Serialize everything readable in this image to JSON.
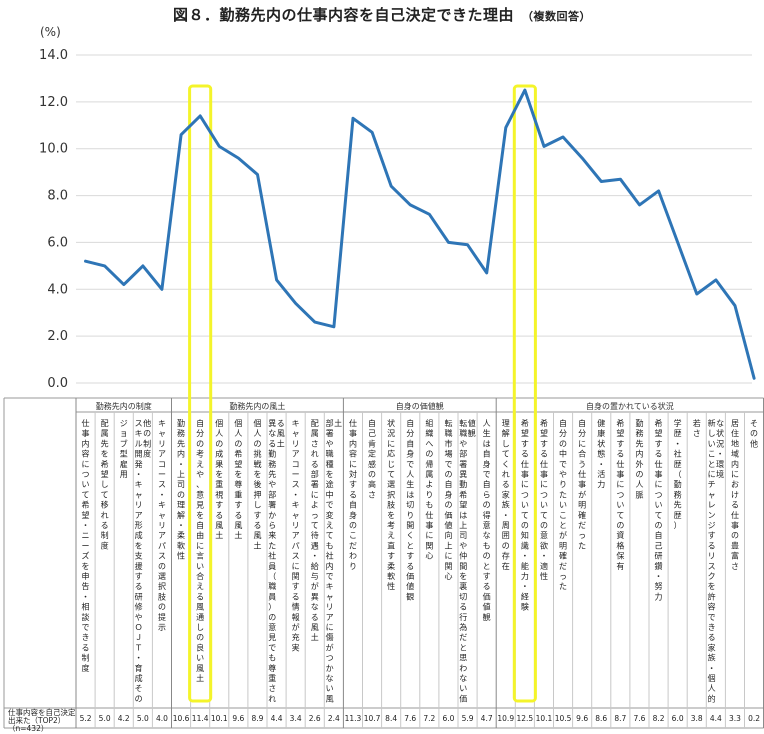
{
  "header": {
    "title": "図８．勤務先内の仕事内容を自己決定できた理由",
    "subtitle": "（複数回答）"
  },
  "chart_data": {
    "type": "line",
    "unit_label": "(%)",
    "ylim": [
      0,
      14
    ],
    "yticks": [
      "0.0",
      "2.0",
      "4.0",
      "6.0",
      "8.0",
      "10.0",
      "12.0",
      "14.0"
    ],
    "line_color": "#2e75b6",
    "highlight_color": "#f4f42a",
    "categories": [
      "仕事内容について希望・ニーズを申告・相談できる制度",
      "配属先を希望して移れる制度",
      "ジョブ型雇用",
      "スキル開発・キャリア形成を支援する研修やＯＪＴ・育成その他の制度",
      "キャリアコース・キャリアパスの選択肢の提示",
      "勤務先内・上司の理解・柔軟性",
      "自分の考えや、意見を自由に言い合える風通しの良い風土",
      "個人の成果を重視する風土",
      "個人の希望を尊重する風土",
      "個人の挑戦を後押しする風土",
      "異なる勤務先や部署から来た社員（職員）の意見でも尊重される風土",
      "キャリアコース・キャリアパスに関する情報が充実",
      "配属される部署によって待遇・給与が異なる風土",
      "部署や職種を途中で変えても社内でキャリアに傷がつかない風土",
      "仕事内容に対する自身のこだわり",
      "自己肯定感の高さ",
      "状況に応じて選択肢を考え直す柔軟性",
      "自分自身で人生は切り開くとする価値観",
      "組織への帰属よりも仕事に関心",
      "転職市場での自身の価値向上に関心",
      "転職や部署異動希望は上司や仲間を裏切る行為だと思わない価値観",
      "人生は自身で自らの得意なものとする価値観",
      "理解してくれる家族・周囲の存在",
      "希望する仕事についての知識・能力・経験",
      "希望する仕事についての意欲・適性",
      "自分の中でやりたいことが明確だった",
      "自分に合う仕事が明確だった",
      "健康状態・活力",
      "希望する仕事についての資格保有",
      "勤務先内外の人脈",
      "希望する仕事についての自己研鑽・努力",
      "学歴・社歴（勤務先歴）",
      "若さ",
      "新しいことにチャレンジするリスクを許容できる家族・個人的な状況・環境",
      "居住地域内における仕事の豊富さ",
      "その他"
    ],
    "values": [
      5.2,
      5.0,
      4.2,
      5.0,
      4.0,
      10.6,
      11.4,
      10.1,
      9.6,
      8.9,
      4.4,
      3.4,
      2.6,
      2.4,
      11.3,
      10.7,
      8.4,
      7.6,
      7.2,
      6.0,
      5.9,
      4.7,
      10.9,
      12.5,
      10.1,
      10.5,
      9.6,
      8.6,
      8.7,
      7.6,
      8.2,
      6.0,
      3.8,
      4.4,
      3.3,
      0.2
    ],
    "value_labels": [
      "5.2",
      "5.0",
      "4.2",
      "5.0",
      "4.0",
      "10.6",
      "11.4",
      "10.1",
      "9.6",
      "8.9",
      "4.4",
      "3.4",
      "2.6",
      "2.4",
      "11.3",
      "10.7",
      "8.4",
      "7.6",
      "7.2",
      "6.0",
      "5.9",
      "4.7",
      "10.9",
      "12.5",
      "10.1",
      "10.5",
      "9.6",
      "8.6",
      "8.7",
      "7.6",
      "8.2",
      "6.0",
      "3.8",
      "4.4",
      "3.3",
      "0.2"
    ],
    "groups": [
      {
        "label": "勤務先内の制度",
        "start": 0,
        "end": 4
      },
      {
        "label": "勤務先内の風土",
        "start": 5,
        "end": 13
      },
      {
        "label": "自身の価値観",
        "start": 14,
        "end": 21
      },
      {
        "label": "自身の置かれている状況",
        "start": 22,
        "end": 35
      }
    ],
    "highlighted_indices": [
      6,
      23
    ],
    "row_label_lines": [
      "仕事内容を自己決定",
      "出来た（TOP2）",
      "（n=432）"
    ]
  }
}
